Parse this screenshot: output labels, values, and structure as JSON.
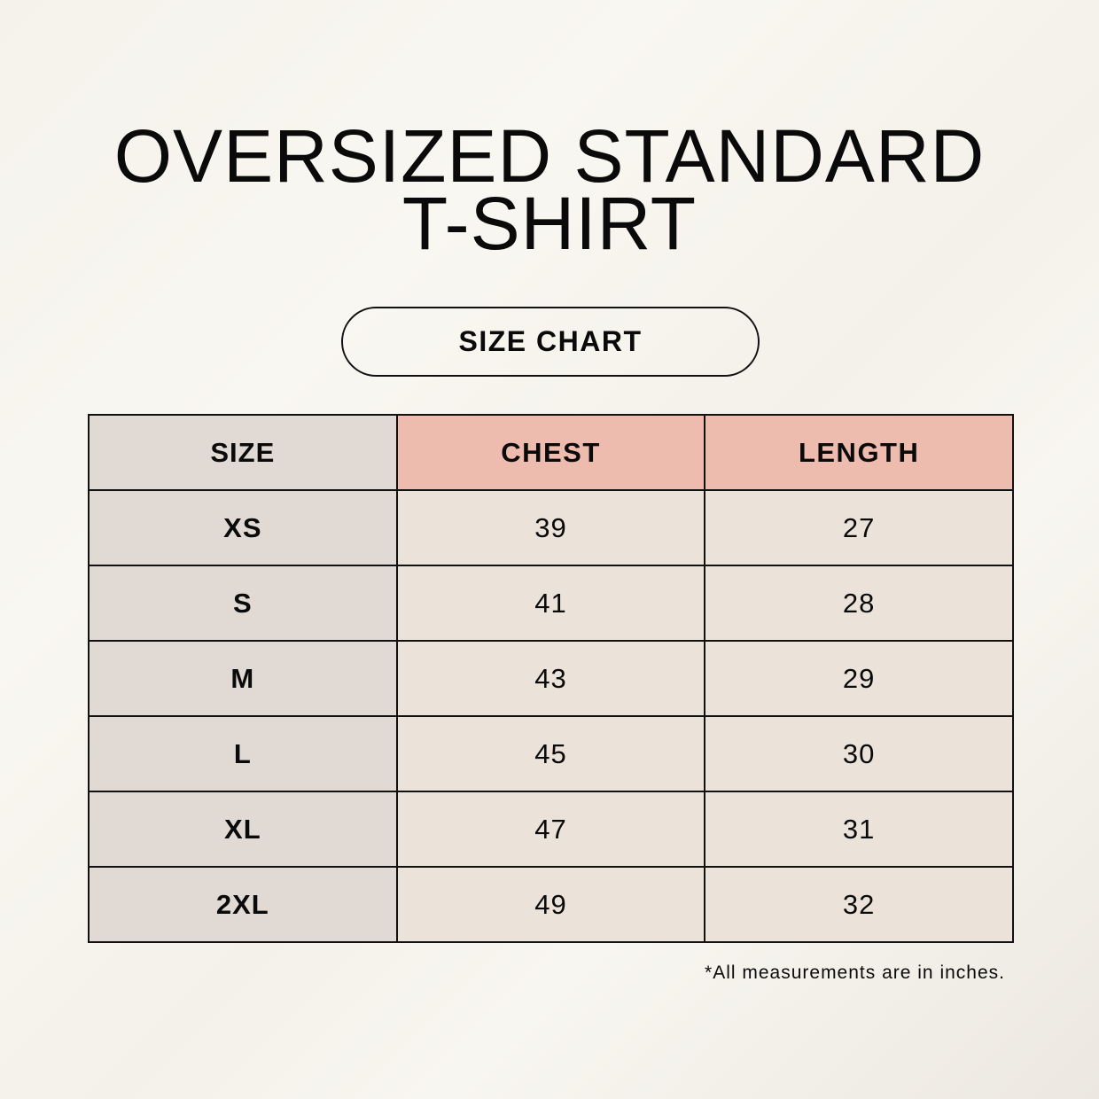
{
  "title": {
    "line1": "OVERSIZED STANDARD",
    "line2": "T-SHIRT"
  },
  "badge": "SIZE CHART",
  "table": {
    "headers": [
      "SIZE",
      "CHEST",
      "LENGTH"
    ],
    "rows": [
      [
        "XS",
        "39",
        "27"
      ],
      [
        "S",
        "41",
        "28"
      ],
      [
        "M",
        "43",
        "29"
      ],
      [
        "L",
        "45",
        "30"
      ],
      [
        "XL",
        "47",
        "31"
      ],
      [
        "2XL",
        "49",
        "32"
      ]
    ]
  },
  "footnote": "*All measurements are in inches.",
  "colors": {
    "size_column": "#e1d9d3",
    "header_accent": "#eebcae",
    "value_cells": "#ebe3d9"
  }
}
